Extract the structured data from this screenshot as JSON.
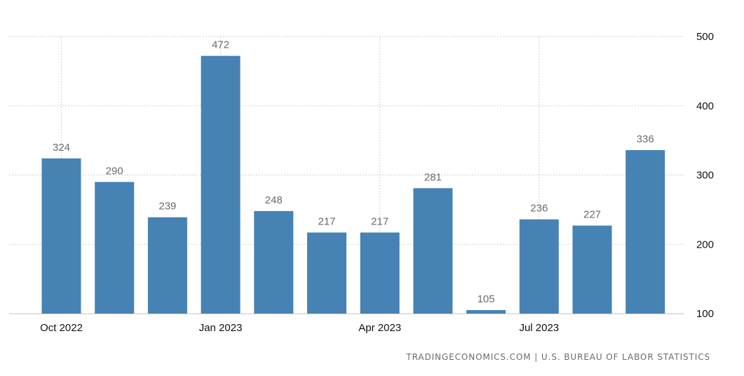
{
  "chart_data": {
    "type": "bar",
    "categories": [
      "Oct 2022",
      "Nov 2022",
      "Dec 2022",
      "Jan 2023",
      "Feb 2023",
      "Mar 2023",
      "Apr 2023",
      "May 2023",
      "Jun 2023",
      "Jul 2023",
      "Aug 2023",
      "Sep 2023"
    ],
    "values": [
      324,
      290,
      239,
      472,
      248,
      217,
      217,
      281,
      105,
      236,
      227,
      336
    ],
    "value_labels": [
      "324",
      "290",
      "239",
      "472",
      "248",
      "217",
      "217",
      "281",
      "105",
      "236",
      "227",
      "336"
    ],
    "x_tick_labels": [
      {
        "category_index": 0,
        "label": "Oct 2022"
      },
      {
        "category_index": 3,
        "label": "Jan 2023"
      },
      {
        "category_index": 6,
        "label": "Apr 2023"
      },
      {
        "category_index": 9,
        "label": "Jul 2023"
      }
    ],
    "y_ticks": [
      {
        "value": 100,
        "label": "100"
      },
      {
        "value": 200,
        "label": "200"
      },
      {
        "value": 300,
        "label": "300"
      },
      {
        "value": 400,
        "label": "400"
      },
      {
        "value": 500,
        "label": "500"
      }
    ],
    "ylim": [
      100,
      500
    ],
    "y_axis_position": "right",
    "grid": true,
    "legend": "none",
    "title": "",
    "xlabel": "",
    "ylabel": "",
    "colors": {
      "bar": "#4682b4",
      "grid": "#cfcfcf",
      "value_label": "#6b6b6b",
      "tick_label": "#111111"
    }
  },
  "source_text": "TRADINGECONOMICS.COM | U.S. BUREAU OF LABOR STATISTICS"
}
